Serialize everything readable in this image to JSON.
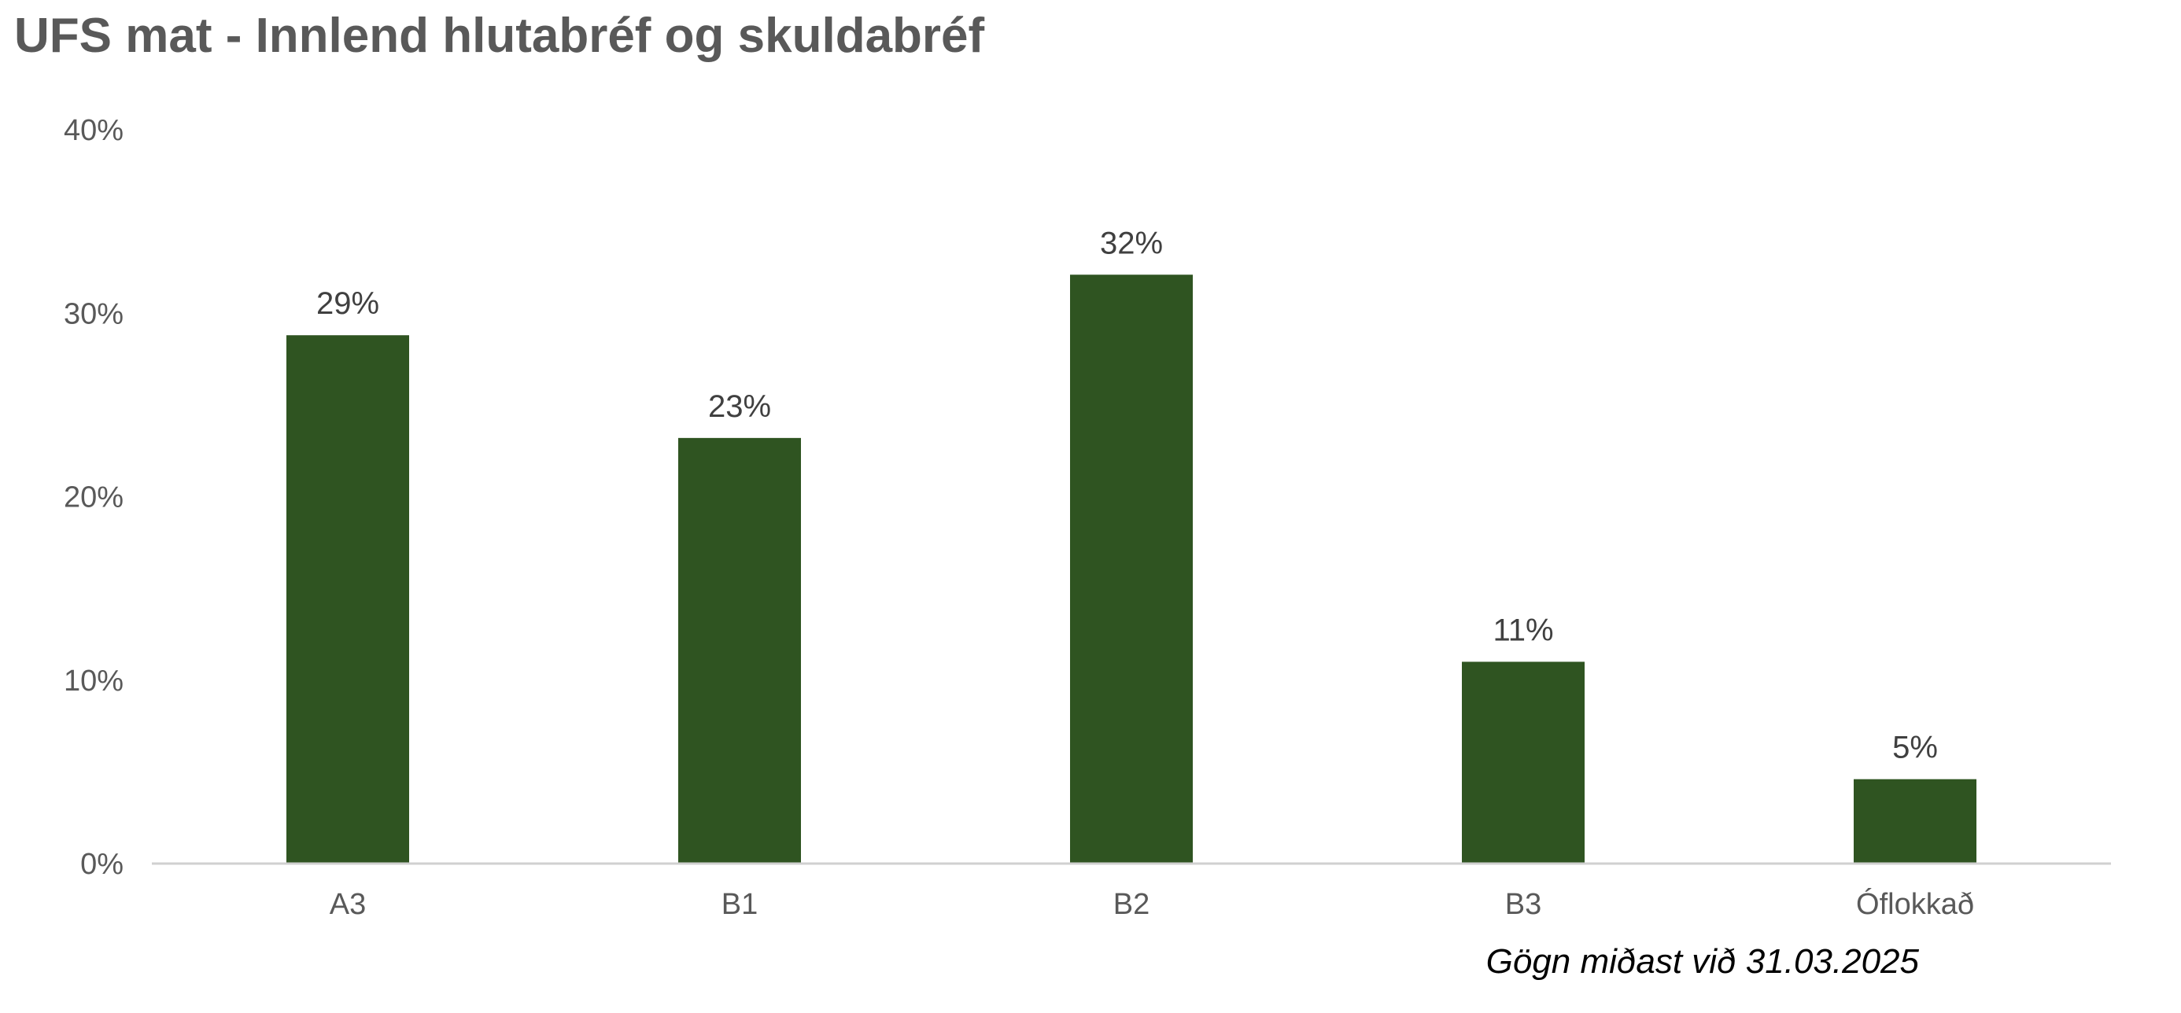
{
  "chart_data": {
    "type": "bar",
    "title": "UFS mat - Innlend hlutabréf og skuldabréf",
    "categories": [
      "A3",
      "B1",
      "B2",
      "B3",
      "Óflokkað"
    ],
    "values": [
      29,
      23,
      32,
      11,
      5
    ],
    "plotted_values": [
      28.8,
      23.2,
      32.1,
      11.0,
      4.6
    ],
    "data_labels": [
      "29%",
      "23%",
      "32%",
      "11%",
      "5%"
    ],
    "yticks": [
      "0%",
      "10%",
      "20%",
      "30%",
      "40%"
    ],
    "ylim": [
      0,
      40
    ],
    "grid": false,
    "legend": "none",
    "bar_color": "#2f5421",
    "axis_color": "#d0d0d0",
    "footnote": "Gögn miðast við 31.03.2025"
  }
}
